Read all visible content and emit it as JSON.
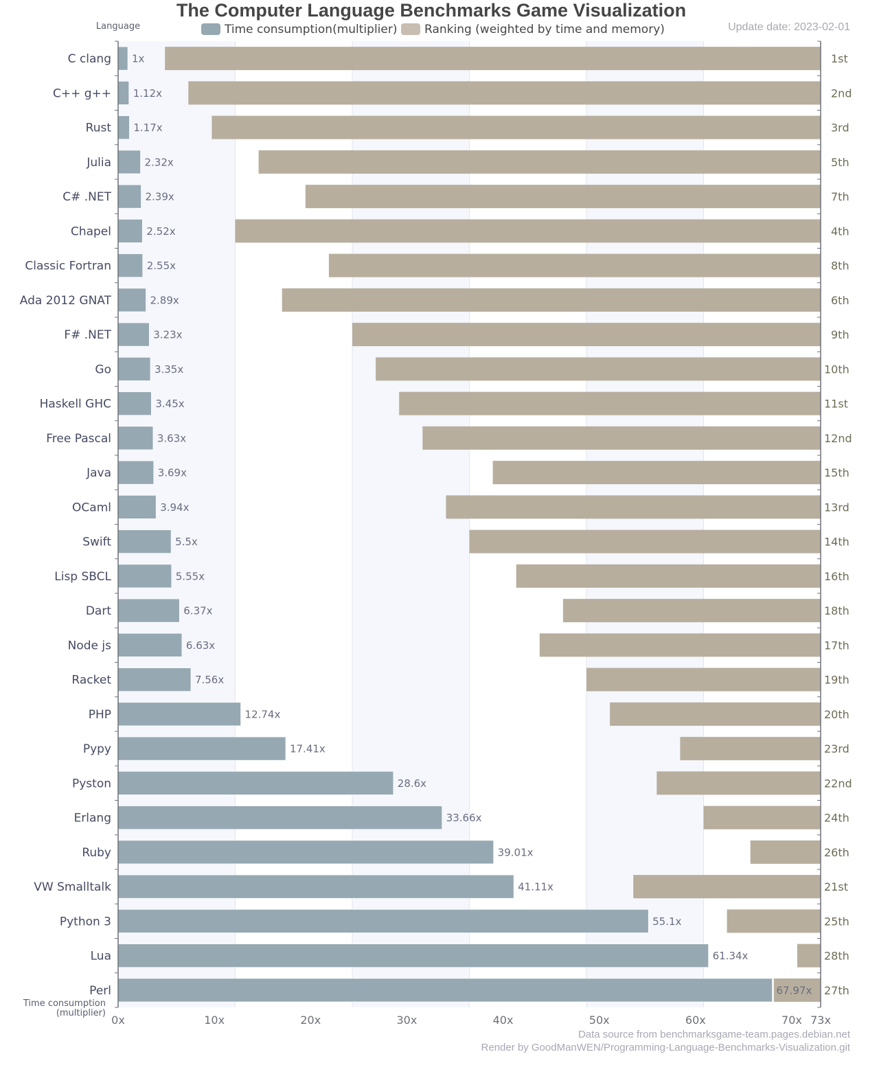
{
  "chart_data": {
    "type": "bar",
    "orientation": "horizontal",
    "title": "The Computer Language Benchmarks Game Visualization",
    "update_date": "Update date: 2023-02-01",
    "footer": [
      "Data source from benchmarksgame-team.pages.debian.net",
      "Render by GoodManWEN/Programming-Language-Benchmarks-Visualization.git"
    ],
    "y_axis_name": "Language",
    "x_axis_name": "Time consumption\n(multiplier)",
    "x_axis_name_lines": [
      "Time consumption",
      "(multiplier)"
    ],
    "xlim": [
      0,
      73
    ],
    "x_ticks": [
      0,
      10,
      20,
      30,
      40,
      50,
      60,
      70,
      73
    ],
    "x_tick_labels": [
      "0x",
      "10x",
      "20x",
      "30x",
      "40x",
      "50x",
      "60x",
      "70x",
      "73x"
    ],
    "rank_axis": {
      "inverse": true,
      "max_rank_slots": 30
    },
    "legend": [
      {
        "name": "Time consumption(multiplier)",
        "color": "#96a8b1"
      },
      {
        "name": "Ranking (weighted by time and memory)",
        "color": "#b7ae9e"
      }
    ],
    "legend_position": "top-center",
    "grid": true,
    "categories": [
      "C clang",
      "C++ g++",
      "Rust",
      "Julia",
      "C# .NET",
      "Chapel",
      "Classic Fortran",
      "Ada 2012 GNAT",
      "F# .NET",
      "Go",
      "Haskell GHC",
      "Free Pascal",
      "Java",
      "OCaml",
      "Swift",
      "Lisp SBCL",
      "Dart",
      "Node js",
      "Racket",
      "PHP",
      "Pypy",
      "Pyston",
      "Erlang",
      "Ruby",
      "VW Smalltalk",
      "Python 3",
      "Lua",
      "Perl"
    ],
    "series": [
      {
        "name": "Time consumption(multiplier)",
        "values": [
          1,
          1.12,
          1.17,
          2.32,
          2.39,
          2.52,
          2.55,
          2.89,
          3.23,
          3.35,
          3.45,
          3.63,
          3.69,
          3.94,
          5.5,
          5.55,
          6.37,
          6.63,
          7.56,
          12.74,
          17.41,
          28.6,
          33.66,
          39.01,
          41.11,
          55.1,
          61.34,
          67.97
        ],
        "labels": [
          "1x",
          "1.12x",
          "1.17x",
          "2.32x",
          "2.39x",
          "2.52x",
          "2.55x",
          "2.89x",
          "3.23x",
          "3.35x",
          "3.45x",
          "3.63x",
          "3.69x",
          "3.94x",
          "5.5x",
          "5.55x",
          "6.37x",
          "6.63x",
          "7.56x",
          "12.74x",
          "17.41x",
          "28.6x",
          "33.66x",
          "39.01x",
          "41.11x",
          "55.1x",
          "61.34x",
          "67.97x"
        ]
      },
      {
        "name": "Ranking (weighted by time and memory)",
        "values": [
          1,
          2,
          3,
          5,
          7,
          4,
          8,
          6,
          9,
          10,
          11,
          12,
          15,
          13,
          14,
          16,
          18,
          17,
          19,
          20,
          23,
          22,
          24,
          26,
          21,
          25,
          28,
          27
        ],
        "labels": [
          "1st",
          "2nd",
          "3rd",
          "5th",
          "7th",
          "4th",
          "8th",
          "6th",
          "9th",
          "10th",
          "11st",
          "12nd",
          "15th",
          "13rd",
          "14th",
          "16th",
          "18th",
          "17th",
          "19th",
          "20th",
          "23rd",
          "22nd",
          "24th",
          "26th",
          "21st",
          "25th",
          "28th",
          "27th"
        ]
      }
    ],
    "colors": {
      "time_bar": "#96a8b1",
      "rank_bar": "#b7ae9e",
      "band": "#f5f7fc",
      "axis": "#6e7079"
    }
  }
}
